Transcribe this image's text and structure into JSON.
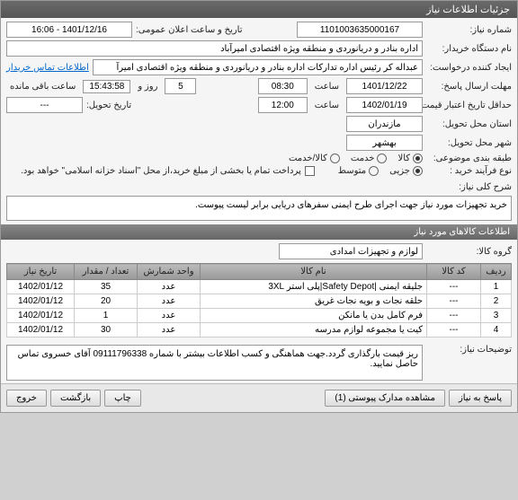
{
  "title": "جزئیات اطلاعات نیاز",
  "labels": {
    "need_no": "شماره نیاز:",
    "buyer_org": "نام دستگاه خریدار:",
    "requester": "ایجاد کننده درخواست:",
    "deadline": "مهلت ارسال پاسخ:",
    "hour": "ساعت",
    "day_and": "روز و",
    "remaining": "ساعت باقی مانده",
    "validity": "حداقل تاریخ اعتبار قیمت: تا تاریخ:",
    "province": "استان محل تحویل:",
    "city": "شهر محل تحویل:",
    "category": "طبقه بندی موضوعی:",
    "process": "نوع فرآیند خرید :",
    "contact_link": "اطلاعات تماس خریدار",
    "announce": "تاریخ و ساعت اعلان عمومی:",
    "delivery_date": "تاریخ تحویل:",
    "pay_note": "پرداخت تمام یا بخشی از مبلغ خرید،از محل \"اسناد خزانه اسلامی\" خواهد بود.",
    "desc_label": "شرح کلی نیاز:",
    "items_header": "اطلاعات کالاهای مورد نیاز",
    "group_label": "گروه کالا:",
    "notes_label": "توضیحات نیاز:"
  },
  "fields": {
    "need_no": "1101003635000167",
    "buyer_org": "اداره بنادر و دریانوردی و منطقه ویژه اقتصادی امیرآباد",
    "requester": "عبداله کر رئیس اداره تدارکات اداره بنادر و دریانوردی و منطقه ویژه اقتصادی امیرآ",
    "deadline_date": "1401/12/22",
    "deadline_time": "08:30",
    "days_left": "5",
    "countdown": "15:43:58",
    "validity_date": "1402/01/19",
    "validity_time": "12:00",
    "province": "مازندران",
    "city": "بهشهر",
    "announce": "1401/12/16 - 16:06",
    "delivery_date": "---",
    "group": "لوازم و تجهیزات امدادی",
    "description": "خرید تجهیزات مورد نیاز جهت اجرای طرح ایمنی سفرهای دریایی برابر لیست پیوست.",
    "notes": "ریز قیمت بارگذاری گردد.جهت هماهنگی و کسب اطلاعات بیشتر با شماره 09111796338 آقای خسروی تماس حاصل نمایید."
  },
  "category_options": {
    "goods": "کالا",
    "service": "خدمت",
    "both": "کالا/خدمت"
  },
  "process_options": {
    "minor": "جزیی",
    "medium": "متوسط"
  },
  "table": {
    "headers": {
      "row": "ردیف",
      "code": "کد کالا",
      "name": "نام کالا",
      "unit": "واحد شمارش",
      "qty": "تعداد / مقدار",
      "date": "تاریخ نیاز"
    },
    "rows": [
      {
        "r": "1",
        "code": "---",
        "name": "جلیقه ایمنی |Safety Depot|پلی استر 3XL",
        "unit": "عدد",
        "qty": "35",
        "date": "1402/01/12"
      },
      {
        "r": "2",
        "code": "---",
        "name": "حلقه نجات و بویه نجات غریق",
        "unit": "عدد",
        "qty": "20",
        "date": "1402/01/12"
      },
      {
        "r": "3",
        "code": "---",
        "name": "فرم کامل بدن یا مانکن",
        "unit": "عدد",
        "qty": "1",
        "date": "1402/01/12"
      },
      {
        "r": "4",
        "code": "---",
        "name": "کیت یا مجموعه لوازم مدرسه",
        "unit": "عدد",
        "qty": "30",
        "date": "1402/01/12"
      }
    ]
  },
  "buttons": {
    "respond": "پاسخ به نیاز",
    "attachments": "مشاهده مدارک پیوستی (1)",
    "print": "چاپ",
    "back": "بازگشت",
    "exit": "خروج"
  }
}
